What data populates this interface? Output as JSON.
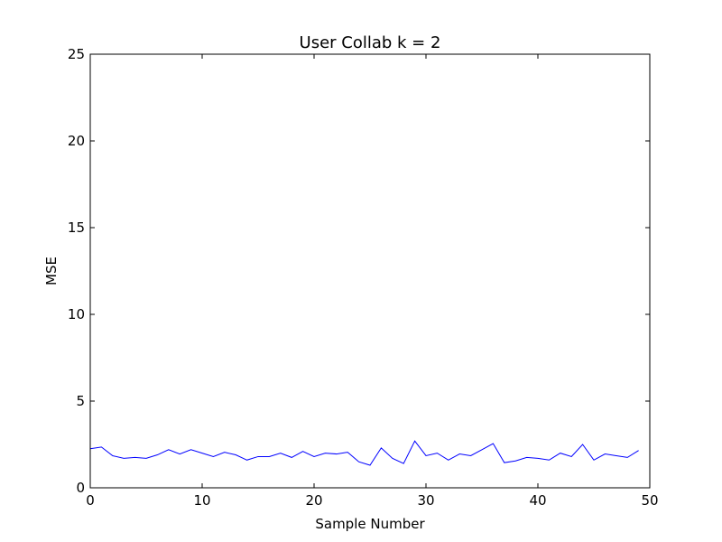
{
  "chart_data": {
    "type": "line",
    "title": "User Collab k = 2",
    "xlabel": "Sample Number",
    "ylabel": "MSE",
    "xlim": [
      0,
      50
    ],
    "ylim": [
      0,
      25
    ],
    "xticks": [
      0,
      10,
      20,
      30,
      40,
      50
    ],
    "yticks": [
      0,
      5,
      10,
      15,
      20,
      25
    ],
    "grid": false,
    "series": [
      {
        "color": "#0000ff",
        "x": [
          0,
          1,
          2,
          3,
          4,
          5,
          6,
          7,
          8,
          9,
          10,
          11,
          12,
          13,
          14,
          15,
          16,
          17,
          18,
          19,
          20,
          21,
          22,
          23,
          24,
          25,
          26,
          27,
          28,
          29,
          30,
          31,
          32,
          33,
          34,
          35,
          36,
          37,
          38,
          39,
          40,
          41,
          42,
          43,
          44,
          45,
          46,
          47,
          48,
          49
        ],
        "values": [
          2.25,
          2.35,
          1.85,
          1.7,
          1.75,
          1.7,
          1.9,
          2.2,
          1.95,
          2.2,
          2.0,
          1.8,
          2.05,
          1.9,
          1.6,
          1.8,
          1.8,
          2.0,
          1.75,
          2.1,
          1.8,
          2.0,
          1.95,
          2.05,
          1.5,
          1.3,
          2.3,
          1.7,
          1.4,
          2.7,
          1.85,
          2.0,
          1.6,
          1.95,
          1.85,
          2.2,
          2.55,
          1.45,
          1.55,
          1.75,
          1.7,
          1.6,
          2.0,
          1.8,
          2.5,
          1.6,
          1.95,
          1.85,
          1.75,
          2.15
        ]
      }
    ]
  }
}
